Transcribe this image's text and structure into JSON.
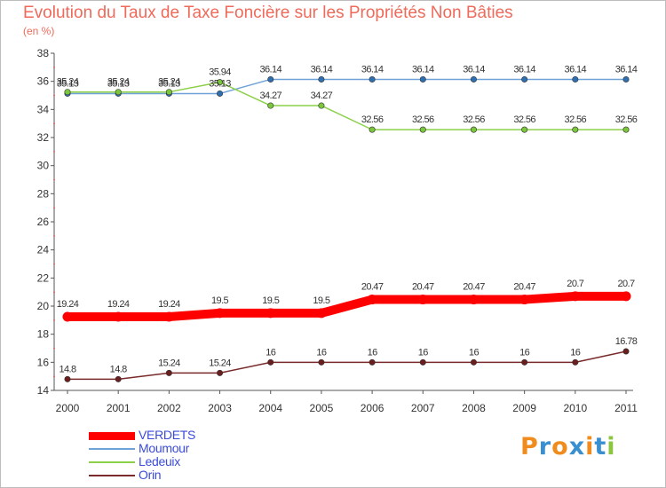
{
  "title": "Evolution du Taux de Taxe Foncière sur les Propriétés Non Bâties",
  "unit": "(en %)",
  "logo": {
    "text": "Proxiti",
    "letters": [
      {
        "ch": "P",
        "color": "#f08c1e"
      },
      {
        "ch": "r",
        "color": "#3a8fd0"
      },
      {
        "ch": "o",
        "color": "#f08c1e"
      },
      {
        "ch": "x",
        "color": "#3a8fd0"
      },
      {
        "ch": "i",
        "color": "#f08c1e"
      },
      {
        "ch": "t",
        "color": "#3a8fd0"
      },
      {
        "ch": "i",
        "color": "#8cc63f"
      }
    ]
  },
  "chart_data": {
    "type": "line",
    "title": "Evolution du Taux de Taxe Foncière sur les Propriétés Non Bâties",
    "ylabel": "(en %)",
    "xlabel": "",
    "categories": [
      "2000",
      "2001",
      "2002",
      "2003",
      "2004",
      "2005",
      "2006",
      "2007",
      "2008",
      "2009",
      "2010",
      "2011"
    ],
    "ylim": [
      14,
      38
    ],
    "yticks": [
      14,
      16,
      18,
      20,
      22,
      24,
      26,
      28,
      30,
      32,
      34,
      36,
      38
    ],
    "grid": false,
    "legend_position": "bottom-left",
    "series": [
      {
        "name": "VERDETS",
        "color": "#ff0000",
        "marker": "#ff0000",
        "width": "thick",
        "values": [
          19.24,
          19.24,
          19.24,
          19.5,
          19.5,
          19.5,
          20.47,
          20.47,
          20.47,
          20.47,
          20.7,
          20.7
        ],
        "labels": [
          "19.24",
          "19.24",
          "19.24",
          "19.5",
          "19.5",
          "19.5",
          "20.47",
          "20.47",
          "20.47",
          "20.47",
          "20.7",
          "20.7"
        ]
      },
      {
        "name": "Moumour",
        "color": "#6fa3d8",
        "marker": "#2f6fb0",
        "width": "thin",
        "values": [
          35.13,
          35.13,
          35.13,
          35.13,
          36.14,
          36.14,
          36.14,
          36.14,
          36.14,
          36.14,
          36.14,
          36.14
        ],
        "labels": [
          "35.13",
          "35.13",
          "35.13",
          "35.13",
          "36.14",
          "36.14",
          "36.14",
          "36.14",
          "36.14",
          "36.14",
          "36.14",
          "36.14"
        ]
      },
      {
        "name": "Ledeuix",
        "color": "#8cd04a",
        "marker": "#7ac83a",
        "width": "thin",
        "values": [
          35.24,
          35.24,
          35.24,
          35.94,
          34.27,
          34.27,
          32.56,
          32.56,
          32.56,
          32.56,
          32.56,
          32.56
        ],
        "labels": [
          "35.24",
          "35.24",
          "35.24",
          "35.94",
          "34.27",
          "34.27",
          "32.56",
          "32.56",
          "32.56",
          "32.56",
          "32.56",
          "32.56"
        ]
      },
      {
        "name": "Orin",
        "color": "#7a2a2a",
        "marker": "#6b1e1e",
        "width": "thin",
        "values": [
          14.8,
          14.8,
          15.24,
          15.24,
          16,
          16,
          16,
          16,
          16,
          16,
          16,
          16.78
        ],
        "labels": [
          "14.8",
          "14.8",
          "15.24",
          "15.24",
          "16",
          "16",
          "16",
          "16",
          "16",
          "16",
          "16",
          "16.78"
        ]
      }
    ]
  }
}
